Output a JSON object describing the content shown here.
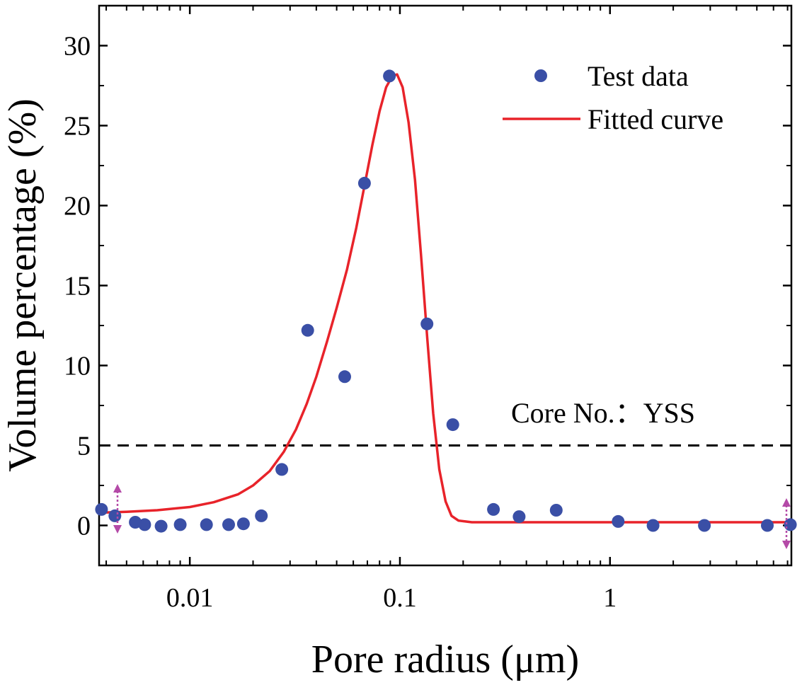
{
  "chart_data": {
    "type": "scatter",
    "xscale": "log",
    "xlabel": "Pore radius (μm)",
    "ylabel": "Volume percentage (%)",
    "xlim": [
      0.0037,
      7.3
    ],
    "ylim": [
      -2.5,
      32.5
    ],
    "xticks": [
      {
        "value": 0.01,
        "label": "0.01"
      },
      {
        "value": 0.1,
        "label": "0.1"
      },
      {
        "value": 1,
        "label": "1"
      }
    ],
    "yticks": [
      {
        "value": 0,
        "label": "0"
      },
      {
        "value": 5,
        "label": "5"
      },
      {
        "value": 10,
        "label": "10"
      },
      {
        "value": 15,
        "label": "15"
      },
      {
        "value": 20,
        "label": "20"
      },
      {
        "value": 25,
        "label": "25"
      },
      {
        "value": 30,
        "label": "30"
      }
    ],
    "series": [
      {
        "name": "Test data",
        "kind": "scatter",
        "color": "#3a4fa6",
        "x": [
          0.0038,
          0.0044,
          0.0055,
          0.0061,
          0.0073,
          0.009,
          0.012,
          0.0153,
          0.018,
          0.0219,
          0.0274,
          0.0364,
          0.0546,
          0.0678,
          0.0891,
          0.1345,
          0.1786,
          0.2787,
          0.3693,
          0.5549,
          1.0937,
          1.6035,
          2.813,
          5.606,
          7.22
        ],
        "y": [
          1.0,
          0.6,
          0.2,
          0.05,
          -0.05,
          0.05,
          0.05,
          0.05,
          0.1,
          0.6,
          3.5,
          12.2,
          9.3,
          21.4,
          28.1,
          12.6,
          6.3,
          1.0,
          0.55,
          0.95,
          0.25,
          0.0,
          0.0,
          0.0,
          0.05
        ]
      },
      {
        "name": "Fitted curve",
        "kind": "line",
        "color": "#e8232a",
        "x": [
          0.0038,
          0.005,
          0.007,
          0.01,
          0.013,
          0.017,
          0.02,
          0.024,
          0.028,
          0.032,
          0.036,
          0.04,
          0.045,
          0.05,
          0.056,
          0.062,
          0.068,
          0.074,
          0.08,
          0.086,
          0.092,
          0.097,
          0.103,
          0.11,
          0.118,
          0.126,
          0.135,
          0.144,
          0.154,
          0.165,
          0.176,
          0.19,
          0.205,
          0.22,
          0.3,
          1.0,
          3.0,
          7.3
        ],
        "y": [
          0.8,
          0.85,
          0.95,
          1.15,
          1.45,
          1.95,
          2.5,
          3.4,
          4.6,
          6.0,
          7.6,
          9.3,
          11.5,
          13.6,
          16.0,
          18.6,
          21.3,
          23.8,
          25.9,
          27.4,
          28.1,
          28.2,
          27.4,
          25.2,
          21.6,
          16.9,
          11.7,
          7.0,
          3.5,
          1.5,
          0.6,
          0.3,
          0.25,
          0.2,
          0.2,
          0.2,
          0.2,
          0.2
        ]
      }
    ],
    "reference_line": {
      "y": 5,
      "style": "dashed",
      "color": "#000000"
    },
    "annotation": "Core No.：YSS",
    "legend_position": "top-right"
  }
}
